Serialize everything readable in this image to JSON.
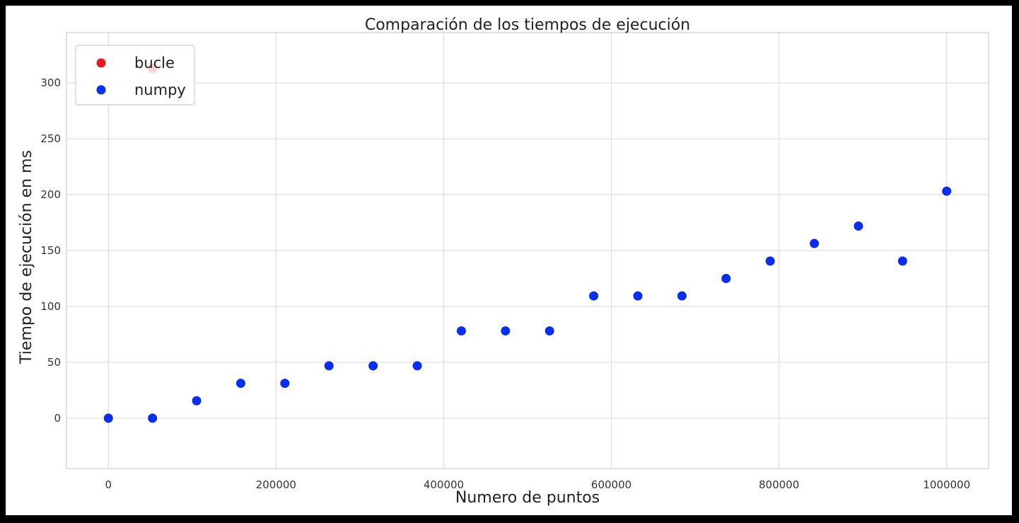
{
  "chart_data": {
    "type": "scatter",
    "title": "Comparación de los tiempos de ejecución",
    "xlabel": "Numero de puntos",
    "ylabel": "Tiempo de ejecución en ms",
    "xlim": [
      -50000,
      1050000
    ],
    "ylim": [
      -45,
      345
    ],
    "xticks": [
      0,
      200000,
      400000,
      600000,
      800000,
      1000000
    ],
    "xtick_labels": [
      "0",
      "200000",
      "400000",
      "600000",
      "800000",
      "1000000"
    ],
    "yticks": [
      0,
      50,
      100,
      150,
      200,
      250,
      300
    ],
    "ytick_labels": [
      "0",
      "50",
      "100",
      "150",
      "200",
      "250",
      "300"
    ],
    "grid": true,
    "legend_position": "top-left",
    "series": [
      {
        "name": "bucle",
        "color": "#e8191c",
        "x": [
          52632
        ],
        "y": [
          313
        ]
      },
      {
        "name": "numpy",
        "color": "#0a2ef0",
        "x": [
          0,
          52632,
          105263,
          157895,
          210526,
          263158,
          315789,
          368421,
          421053,
          473684,
          526316,
          578947,
          631579,
          684211,
          736842,
          789474,
          842105,
          894737,
          947368,
          1000000
        ],
        "y": [
          0,
          0,
          15.6,
          31.2,
          31.2,
          46.9,
          46.9,
          46.9,
          78.1,
          78.1,
          78.1,
          109.4,
          109.4,
          109.4,
          125,
          140.6,
          156.3,
          171.9,
          140.6,
          203.1
        ]
      }
    ]
  }
}
